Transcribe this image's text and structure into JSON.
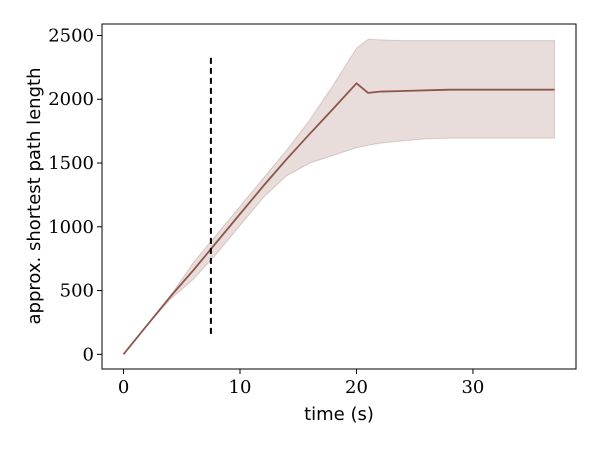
{
  "chart_data": {
    "type": "line",
    "title": "",
    "xlabel": "time (s)",
    "ylabel": "approx. shortest path length",
    "xlim": [
      -1.85,
      38.85
    ],
    "ylim": [
      -115,
      2590
    ],
    "xticks": [
      0,
      10,
      20,
      30
    ],
    "yticks": [
      0,
      500,
      1000,
      1500,
      2000,
      2500
    ],
    "grid": false,
    "legend": "none",
    "series": [
      {
        "color": "#8c564b",
        "x": [
          0,
          2,
          4,
          6,
          8,
          10,
          12,
          14,
          16,
          18,
          20,
          21,
          22,
          24,
          26,
          28,
          30,
          32,
          34,
          37
        ],
        "values": [
          0,
          225,
          450,
          660,
          880,
          1100,
          1320,
          1530,
          1730,
          1925,
          2125,
          2050,
          2060,
          2065,
          2070,
          2075,
          2075,
          2075,
          2075,
          2075
        ],
        "band_upper": [
          0,
          225,
          455,
          720,
          940,
          1160,
          1380,
          1600,
          1840,
          2110,
          2400,
          2470,
          2465,
          2460,
          2460,
          2460,
          2460,
          2460,
          2460,
          2460
        ],
        "band_lower": [
          0,
          225,
          430,
          590,
          790,
          1010,
          1230,
          1400,
          1500,
          1560,
          1620,
          1640,
          1655,
          1675,
          1690,
          1695,
          1695,
          1695,
          1695,
          1695
        ]
      }
    ],
    "annotations": [
      {
        "type": "vertical-dashed-line",
        "x": 7.5,
        "y_from": 160,
        "y_to": 2350,
        "color": "#000000"
      }
    ]
  }
}
